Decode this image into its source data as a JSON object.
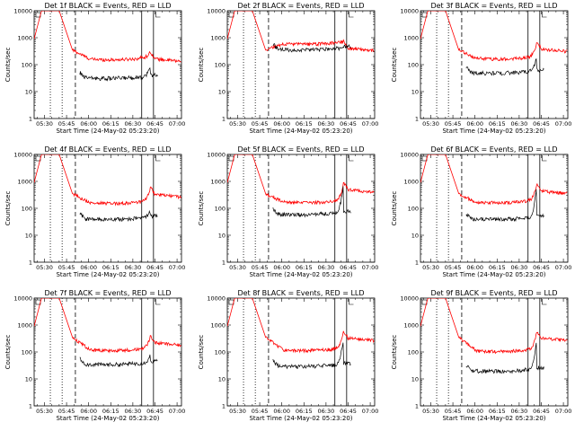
{
  "chart_data": {
    "type": "line",
    "layout": "3x3 grid",
    "xlabel": "Start Time (24-May-02 05:23:20)",
    "ylabel": "Counts/sec",
    "x_ticks": [
      "05:30",
      "05:45",
      "06:00",
      "06:15",
      "06:30",
      "06:45",
      "07:00"
    ],
    "x_range_minutes": [
      0,
      100
    ],
    "y_ticks": [
      "1",
      "10",
      "100",
      "1000",
      "10000"
    ],
    "y_scale": "log",
    "ylim": [
      1,
      10000
    ],
    "colors": {
      "events": "#000000",
      "lld": "#ff0000"
    },
    "vertical_markers": [
      {
        "minutes": 11,
        "style": "dotted"
      },
      {
        "minutes": 19,
        "style": "dotted"
      },
      {
        "minutes": 28,
        "style": "dashed"
      },
      {
        "minutes": 73,
        "style": "solid"
      },
      {
        "minutes": 81,
        "style": "solid"
      }
    ],
    "panels": [
      {
        "title": "Det 1f BLACK = Events, RED = LLD",
        "lld_plateau": 160,
        "lld_peak": 300,
        "events_plateau": 32,
        "events_peak": 90
      },
      {
        "title": "Det 2f BLACK = Events, RED = LLD",
        "lld_plateau": 600,
        "lld_peak": 750,
        "events_plateau": 360,
        "events_peak": 500
      },
      {
        "title": "Det 3f BLACK = Events, RED = LLD",
        "lld_plateau": 170,
        "lld_peak": 700,
        "events_plateau": 50,
        "events_peak": 200
      },
      {
        "title": "Det 4f BLACK = Events, RED = LLD",
        "lld_plateau": 160,
        "lld_peak": 600,
        "events_plateau": 40,
        "events_peak": 90
      },
      {
        "title": "Det 5f BLACK = Events, RED = LLD",
        "lld_plateau": 170,
        "lld_peak": 900,
        "events_plateau": 60,
        "events_peak": 1000
      },
      {
        "title": "Det 6f BLACK = Events, RED = LLD",
        "lld_plateau": 170,
        "lld_peak": 800,
        "events_plateau": 40,
        "events_peak": 700
      },
      {
        "title": "Det 7f BLACK = Events, RED = LLD",
        "lld_plateau": 120,
        "lld_peak": 400,
        "events_plateau": 35,
        "events_peak": 80
      },
      {
        "title": "Det 8f BLACK = Events, RED = LLD",
        "lld_plateau": 120,
        "lld_peak": 600,
        "events_plateau": 30,
        "events_peak": 400
      },
      {
        "title": "Det 9f BLACK = Events, RED = LLD",
        "lld_plateau": 110,
        "lld_peak": 600,
        "events_plateau": 20,
        "events_peak": 300
      }
    ]
  }
}
